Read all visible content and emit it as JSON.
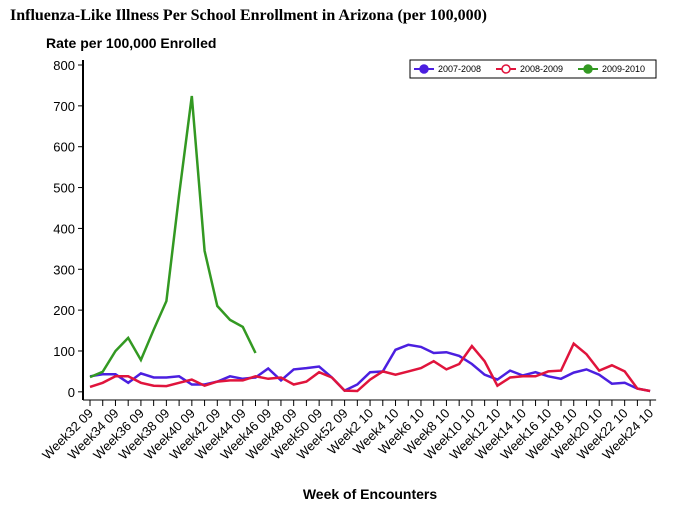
{
  "chart_data": {
    "type": "line",
    "title": "Influenza-Like Illness Per School Enrollment in Arizona (per 100,000)",
    "y_label": "Rate per 100,000 Enrolled",
    "x_label": "Week of Encounters",
    "categories": [
      "Week32 09",
      null,
      "Week34 09",
      null,
      "Week36 09",
      null,
      "Week38 09",
      null,
      "Week40 09",
      null,
      "Week42 09",
      null,
      "Week44 09",
      null,
      "Week46 09",
      null,
      "Week48 09",
      null,
      "Week50 09",
      null,
      "Week52 09",
      null,
      "Week2 10",
      null,
      "Week4 10",
      null,
      "Week6 10",
      null,
      "Week8 10",
      null,
      "Week10 10",
      null,
      "Week12 10",
      null,
      "Week14 10",
      null,
      "Week16 10",
      null,
      "Week18 10",
      null,
      "Week20 10",
      null,
      "Week22 10",
      null,
      "Week24 10"
    ],
    "series": [
      {
        "name": "2007-2008",
        "color": "#4b1fe0",
        "values": [
          38,
          43,
          43,
          22,
          45,
          35,
          35,
          38,
          18,
          18,
          25,
          38,
          32,
          35,
          57,
          28,
          55,
          58,
          62,
          35,
          3,
          18,
          48,
          50,
          103,
          115,
          110,
          95,
          97,
          88,
          68,
          42,
          30,
          52,
          40,
          48,
          38,
          32,
          47,
          55,
          42,
          20,
          22,
          8,
          2
        ]
      },
      {
        "name": "2008-2009",
        "color": "#e0143c",
        "values": [
          12,
          22,
          38,
          38,
          22,
          15,
          14,
          22,
          30,
          15,
          25,
          28,
          28,
          38,
          32,
          35,
          18,
          25,
          48,
          35,
          3,
          2,
          30,
          50,
          42,
          50,
          58,
          75,
          55,
          68,
          112,
          75,
          15,
          35,
          38,
          38,
          50,
          52,
          118,
          92,
          52,
          65,
          50,
          8,
          2
        ]
      },
      {
        "name": "2009-2010",
        "color": "#339922",
        "values": [
          36,
          49,
          100,
          132,
          78,
          152,
          222,
          482,
          724,
          345,
          210,
          176,
          159,
          95,
          null,
          null,
          null,
          null,
          null,
          null,
          null,
          null,
          null,
          null,
          null,
          null,
          null,
          null,
          null,
          null,
          null,
          null,
          null,
          null,
          null,
          null,
          null,
          null,
          null,
          null,
          null,
          null,
          null,
          null,
          null
        ]
      }
    ],
    "ylim": [
      -20,
      800
    ],
    "yticks": [
      0,
      100,
      200,
      300,
      400,
      500,
      600,
      700,
      800
    ],
    "legend": "top-right"
  }
}
